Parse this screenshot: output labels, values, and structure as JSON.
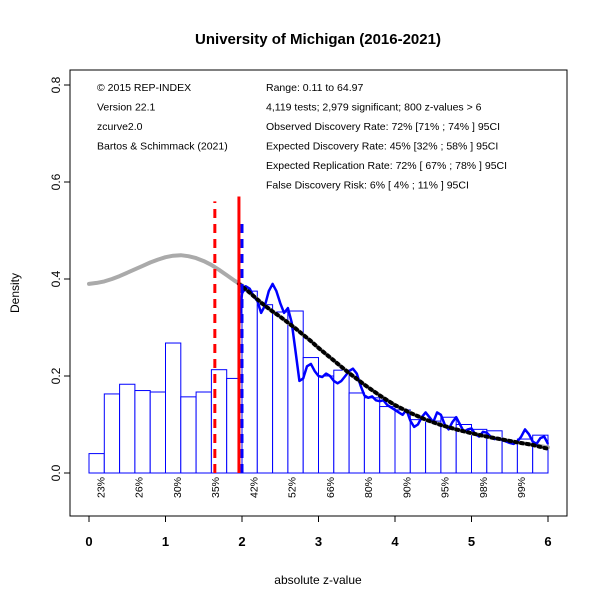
{
  "chart_data": {
    "type": "bar",
    "title": "University of Michigan (2016-2021)",
    "xlabel": "absolute z-value",
    "ylabel": "Density",
    "xlim": [
      0,
      6
    ],
    "ylim": [
      0,
      0.8
    ],
    "x_ticks": [
      "0",
      "1",
      "2",
      "3",
      "4",
      "5",
      "6"
    ],
    "y_ticks": [
      "0.0",
      "0.2",
      "0.4",
      "0.6",
      "0.8"
    ],
    "bin_width": 0.2,
    "histogram": {
      "color": "#0000ff",
      "bin_starts": [
        0,
        0.2,
        0.4,
        0.6,
        0.8,
        1.0,
        1.2,
        1.4,
        1.6,
        1.8,
        2.0,
        2.2,
        2.4,
        2.6,
        2.8,
        3.0,
        3.2,
        3.4,
        3.6,
        3.8,
        4.0,
        4.2,
        4.4,
        4.6,
        4.8,
        5.0,
        5.2,
        5.4,
        5.6,
        5.8
      ],
      "values": [
        0.04,
        0.163,
        0.183,
        0.17,
        0.167,
        0.268,
        0.157,
        0.167,
        0.213,
        0.195,
        0.375,
        0.347,
        0.332,
        0.334,
        0.238,
        0.2,
        0.212,
        0.165,
        0.155,
        0.137,
        0.13,
        0.11,
        0.107,
        0.115,
        0.1,
        0.09,
        0.087,
        0.065,
        0.07,
        0.078
      ]
    },
    "series": [
      {
        "name": "observed density (blue)",
        "color": "#0000ff",
        "x": [
          1.96,
          2.0,
          2.05,
          2.1,
          2.15,
          2.2,
          2.25,
          2.3,
          2.35,
          2.4,
          2.45,
          2.5,
          2.55,
          2.6,
          2.65,
          2.7,
          2.75,
          2.8,
          2.85,
          2.9,
          2.95,
          3.0,
          3.05,
          3.1,
          3.15,
          3.2,
          3.25,
          3.3,
          3.35,
          3.4,
          3.45,
          3.5,
          3.55,
          3.6,
          3.65,
          3.7,
          3.75,
          3.8,
          3.85,
          3.9,
          3.95,
          4.0,
          4.05,
          4.1,
          4.15,
          4.2,
          4.25,
          4.3,
          4.35,
          4.4,
          4.45,
          4.5,
          4.55,
          4.6,
          4.65,
          4.7,
          4.75,
          4.8,
          4.85,
          4.9,
          4.95,
          5.0,
          5.05,
          5.1,
          5.15,
          5.2,
          5.25,
          5.3,
          5.35,
          5.4,
          5.45,
          5.5,
          5.55,
          5.6,
          5.65,
          5.7,
          5.75,
          5.8,
          5.85,
          5.9,
          5.95,
          6.0
        ],
        "values": [
          0.3,
          0.37,
          0.385,
          0.38,
          0.365,
          0.355,
          0.33,
          0.345,
          0.375,
          0.39,
          0.375,
          0.35,
          0.33,
          0.34,
          0.31,
          0.25,
          0.19,
          0.195,
          0.22,
          0.225,
          0.21,
          0.2,
          0.198,
          0.205,
          0.2,
          0.19,
          0.185,
          0.19,
          0.2,
          0.21,
          0.215,
          0.205,
          0.18,
          0.16,
          0.155,
          0.158,
          0.15,
          0.148,
          0.15,
          0.14,
          0.135,
          0.13,
          0.125,
          0.12,
          0.13,
          0.108,
          0.095,
          0.1,
          0.115,
          0.125,
          0.115,
          0.105,
          0.125,
          0.12,
          0.1,
          0.09,
          0.105,
          0.115,
          0.1,
          0.085,
          0.09,
          0.092,
          0.08,
          0.075,
          0.085,
          0.083,
          0.075,
          0.07,
          0.072,
          0.068,
          0.065,
          0.062,
          0.06,
          0.065,
          0.075,
          0.09,
          0.08,
          0.065,
          0.06,
          0.072,
          0.075,
          0.06
        ]
      },
      {
        "name": "fitted density (grey)",
        "color": "#aaaaaa",
        "x": [
          0,
          0.1,
          0.2,
          0.3,
          0.4,
          0.5,
          0.6,
          0.7,
          0.8,
          0.9,
          1.0,
          1.1,
          1.2,
          1.3,
          1.4,
          1.5,
          1.6,
          1.7,
          1.8,
          1.9,
          2.0,
          2.1,
          2.2,
          2.3,
          2.4,
          2.5,
          2.6,
          2.7,
          2.8,
          2.9,
          3.0,
          3.1,
          3.2,
          3.3,
          3.4,
          3.5,
          3.6,
          3.7,
          3.8,
          3.9,
          4.0,
          4.2,
          4.4,
          4.6,
          4.8,
          5.0,
          5.2,
          5.4,
          5.6,
          5.8,
          6.0
        ],
        "values": [
          0.39,
          0.392,
          0.395,
          0.4,
          0.406,
          0.413,
          0.42,
          0.427,
          0.434,
          0.44,
          0.445,
          0.448,
          0.449,
          0.447,
          0.443,
          0.437,
          0.429,
          0.419,
          0.408,
          0.397,
          0.387,
          0.372,
          0.358,
          0.345,
          0.333,
          0.322,
          0.31,
          0.298,
          0.285,
          0.272,
          0.258,
          0.245,
          0.232,
          0.219,
          0.206,
          0.194,
          0.182,
          0.171,
          0.16,
          0.15,
          0.14,
          0.124,
          0.11,
          0.099,
          0.09,
          0.082,
          0.075,
          0.069,
          0.063,
          0.058,
          0.053
        ]
      },
      {
        "name": "fitted density (black dotted)",
        "color": "#000000",
        "x": [
          1.96,
          2.1,
          2.2,
          2.3,
          2.4,
          2.5,
          2.6,
          2.7,
          2.8,
          2.9,
          3.0,
          3.1,
          3.2,
          3.3,
          3.4,
          3.5,
          3.6,
          3.7,
          3.8,
          3.9,
          4.0,
          4.2,
          4.4,
          4.6,
          4.8,
          5.0,
          5.2,
          5.4,
          5.6,
          5.8,
          6.0
        ],
        "values": [
          0.39,
          0.372,
          0.358,
          0.345,
          0.333,
          0.322,
          0.31,
          0.298,
          0.285,
          0.272,
          0.258,
          0.245,
          0.232,
          0.219,
          0.206,
          0.194,
          0.182,
          0.171,
          0.16,
          0.15,
          0.14,
          0.124,
          0.11,
          0.099,
          0.09,
          0.082,
          0.075,
          0.069,
          0.063,
          0.058,
          0.05
        ]
      }
    ],
    "vlines": [
      {
        "name": "red dashed",
        "x": 1.645,
        "y_top": 0.56,
        "color": "#ff0000",
        "style": "dashed"
      },
      {
        "name": "red solid",
        "x": 1.96,
        "y_top": 0.57,
        "color": "#ff0000",
        "style": "solid"
      },
      {
        "name": "blue dashed",
        "x": 2.0,
        "y_top": 0.52,
        "color": "#0000ff",
        "style": "dashed"
      }
    ],
    "bottom_labels": [
      {
        "x": 0.15,
        "label": "23%"
      },
      {
        "x": 0.65,
        "label": "26%"
      },
      {
        "x": 1.15,
        "label": "30%"
      },
      {
        "x": 1.65,
        "label": "35%"
      },
      {
        "x": 2.15,
        "label": "42%"
      },
      {
        "x": 2.65,
        "label": "52%"
      },
      {
        "x": 3.15,
        "label": "66%"
      },
      {
        "x": 3.65,
        "label": "80%"
      },
      {
        "x": 4.15,
        "label": "90%"
      },
      {
        "x": 4.65,
        "label": "95%"
      },
      {
        "x": 5.15,
        "label": "98%"
      },
      {
        "x": 5.65,
        "label": "99%"
      }
    ],
    "annotations_left": [
      "© 2015 REP-INDEX",
      "Version 22.1",
      "zcurve2.0",
      "Bartos & Schimmack (2021)"
    ],
    "annotations_right": [
      "Range: 0.11 to 64.97",
      "4,119 tests; 2,979 significant; 800 z-values > 6",
      "Observed Discovery Rate: 72% [71% ; 74% ] 95CI",
      "Expected Discovery Rate: 45% [32% ; 58% ] 95CI",
      "Expected Replication Rate: 72% [ 67% ; 78% ] 95CI",
      "False Discovery Risk: 6% [ 4% ; 11% ] 95CI"
    ]
  }
}
